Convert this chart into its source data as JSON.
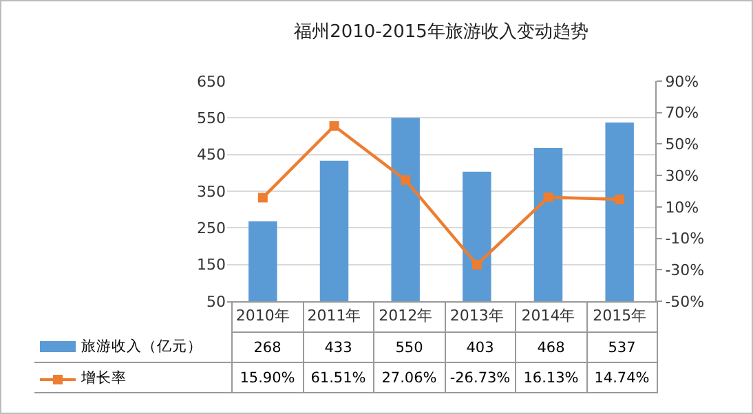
{
  "chart_data": {
    "type": "bar",
    "title": "福州2010-2015年旅游收入变动趋势",
    "categories": [
      "2010年",
      "2011年",
      "2012年",
      "2013年",
      "2014年",
      "2015年"
    ],
    "series": [
      {
        "name": "旅游收入（亿元）",
        "color": "#5b9bd5",
        "values": [
          268,
          433,
          550,
          403,
          468,
          537
        ],
        "value_labels": [
          "268",
          "433",
          "550",
          "403",
          "468",
          "537"
        ]
      },
      {
        "name": "增长率",
        "type": "line",
        "axis": "y2",
        "color": "#ed7d31",
        "marker": "square",
        "values": [
          15.9,
          61.51,
          27.06,
          -26.73,
          16.13,
          14.74
        ],
        "value_labels": [
          "15.90%",
          "61.51%",
          "27.06%",
          "-26.73%",
          "16.13%",
          "14.74%"
        ]
      }
    ],
    "ylim": [
      50,
      650
    ],
    "yticks": [
      50,
      150,
      250,
      350,
      450,
      550,
      650
    ],
    "y2lim": [
      -50,
      90
    ],
    "y2ticks": [
      {
        "value": -50,
        "label": "-50%"
      },
      {
        "value": -30,
        "label": "-30%"
      },
      {
        "value": -10,
        "label": "-10%"
      },
      {
        "value": 10,
        "label": "10%"
      },
      {
        "value": 30,
        "label": "30%"
      },
      {
        "value": 50,
        "label": "50%"
      },
      {
        "value": 70,
        "label": "70%"
      },
      {
        "value": 90,
        "label": "90%"
      }
    ],
    "grid": "y",
    "legend": "bottom"
  }
}
